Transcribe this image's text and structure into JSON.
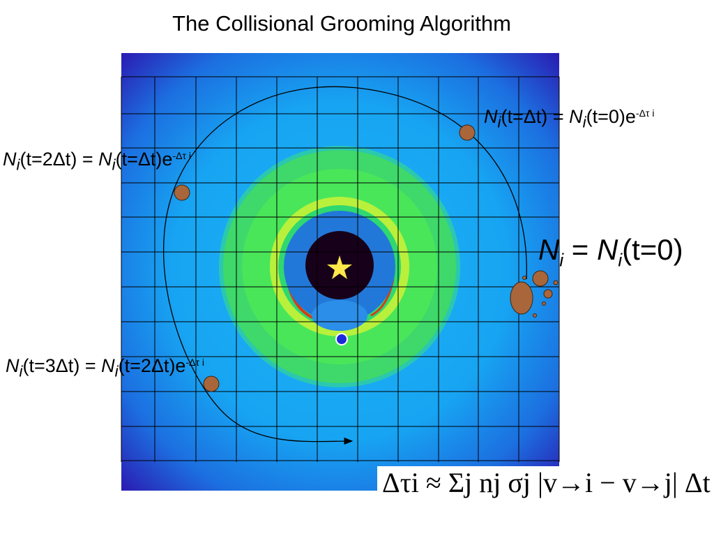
{
  "title": "The Collisional Grooming Algorithm",
  "labels": {
    "t0_lhs": "N",
    "t0_rhs": "N",
    "t0_arg": "(t=0)",
    "dt_lhs": "(t=Δt)",
    "dt_rhs": "(t=0)e",
    "dt_exp": "-Δτ i",
    "t2_lhs": "(t=2Δt)",
    "t2_rhs": "(t=Δt)e",
    "t2_exp": "-Δτ i",
    "t3_lhs": "(t=3Δt)",
    "t3_rhs": "(t=2Δt)e",
    "t3_exp": "-Δτ i",
    "sub_i": "i",
    "equals": "="
  },
  "formula": {
    "text": "Δτi ≈ Σj nj σj |v→i − v→j| Δt"
  },
  "colors": {
    "disk_outer": "#0a36b8",
    "disk_mid": "#1aa3f0",
    "ring_green": "#39e05a",
    "ring_yellow": "#c8f03a",
    "core": "#17001a",
    "star": "#ffe84a",
    "particle": "#a9663a",
    "dot": "#1b2bd8"
  }
}
